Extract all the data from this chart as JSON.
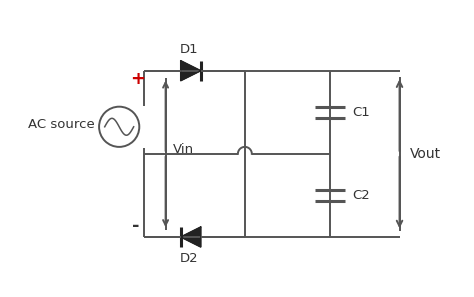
{
  "bg_color": "#ffffff",
  "line_color": "#555555",
  "text_color": "#333333",
  "red_color": "#cc0000",
  "diode_color": "#222222",
  "fig_width": 4.74,
  "fig_height": 2.97,
  "dpi": 100,
  "labels": {
    "ac_source": "AC source",
    "vin": "Vin",
    "vout": "Vout",
    "d1": "D1",
    "d2": "D2",
    "c1": "C1",
    "c2": "C2",
    "plus": "+",
    "minus": "-"
  },
  "xlim": [
    0,
    9.5
  ],
  "ylim": [
    0,
    5.9
  ]
}
